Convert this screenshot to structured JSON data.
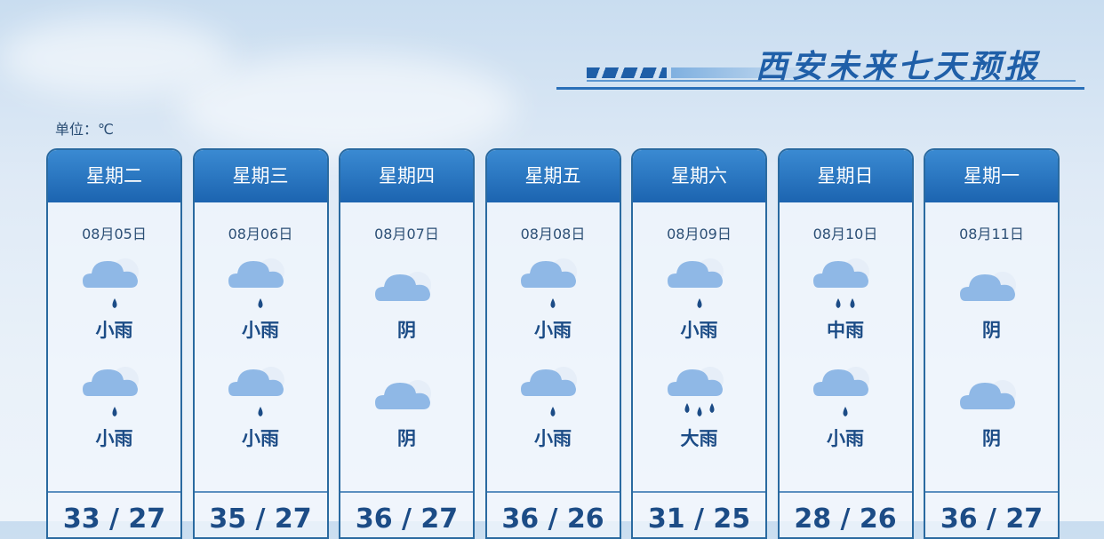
{
  "title": "西安未来七天预报",
  "unit_label": "单位：℃",
  "colors": {
    "header": "#1c64b0",
    "text": "#1c4c86",
    "cloud": "#8fb8e6",
    "drop": "#1c4c86"
  },
  "days": [
    {
      "weekday": "星期二",
      "date": "08月05日",
      "day_icon": "light-rain-icon",
      "day_weather": "小雨",
      "night_icon": "light-rain-icon",
      "night_weather": "小雨",
      "temp": "33 / 27"
    },
    {
      "weekday": "星期三",
      "date": "08月06日",
      "day_icon": "light-rain-icon",
      "day_weather": "小雨",
      "night_icon": "light-rain-icon",
      "night_weather": "小雨",
      "temp": "35 / 27"
    },
    {
      "weekday": "星期四",
      "date": "08月07日",
      "day_icon": "overcast-icon",
      "day_weather": "阴",
      "night_icon": "overcast-icon",
      "night_weather": "阴",
      "temp": "36 / 27"
    },
    {
      "weekday": "星期五",
      "date": "08月08日",
      "day_icon": "light-rain-icon",
      "day_weather": "小雨",
      "night_icon": "light-rain-icon",
      "night_weather": "小雨",
      "temp": "36 / 26"
    },
    {
      "weekday": "星期六",
      "date": "08月09日",
      "day_icon": "light-rain-icon",
      "day_weather": "小雨",
      "night_icon": "heavy-rain-icon",
      "night_weather": "大雨",
      "temp": "31 / 25"
    },
    {
      "weekday": "星期日",
      "date": "08月10日",
      "day_icon": "moderate-rain-icon",
      "day_weather": "中雨",
      "night_icon": "light-rain-icon",
      "night_weather": "小雨",
      "temp": "28 / 26"
    },
    {
      "weekday": "星期一",
      "date": "08月11日",
      "day_icon": "overcast-icon",
      "day_weather": "阴",
      "night_icon": "overcast-icon",
      "night_weather": "阴",
      "temp": "36 / 27"
    }
  ]
}
